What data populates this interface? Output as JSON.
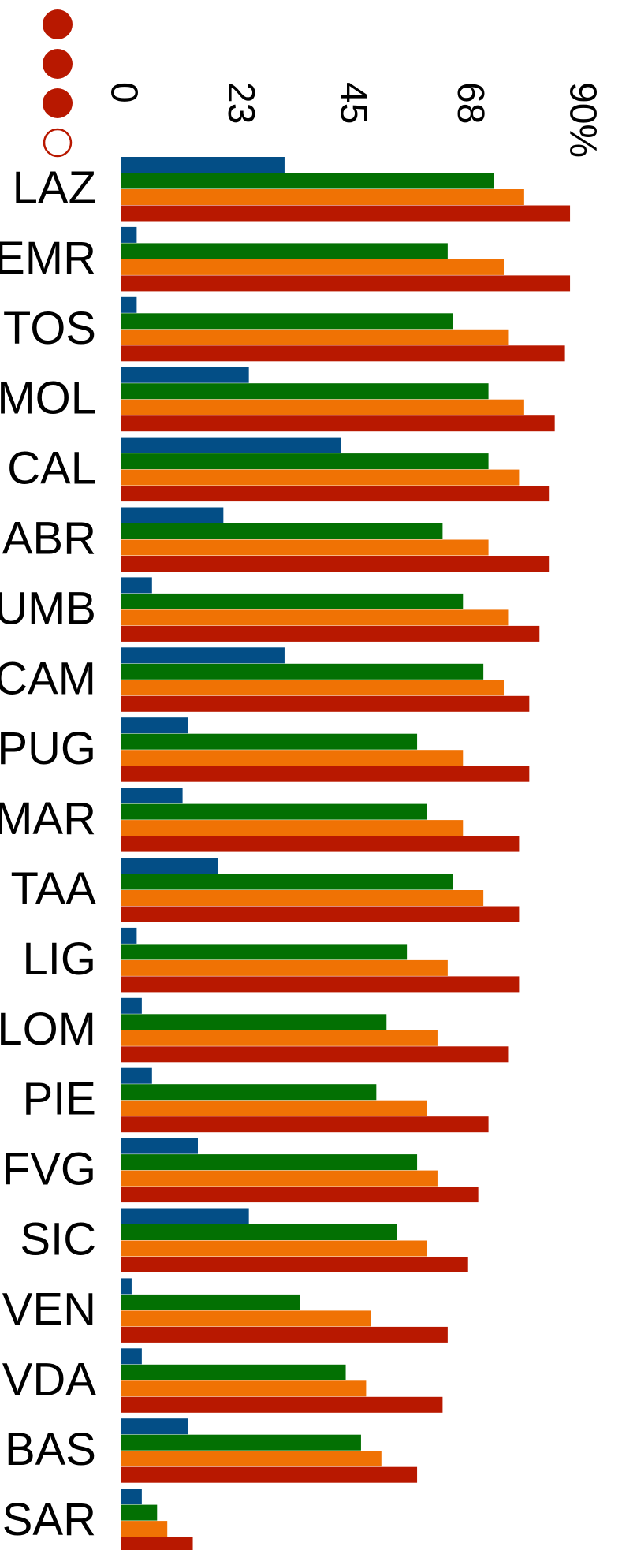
{
  "chart_data": {
    "type": "bar",
    "orientation": "horizontal",
    "categories": [
      "LAZ",
      "EMR",
      "TOS",
      "MOL",
      "CAL",
      "ABR",
      "UMB",
      "CAM",
      "PUG",
      "MAR",
      "TAA",
      "LIG",
      "LOM",
      "PIE",
      "FVG",
      "SIC",
      "VEN",
      "VDA",
      "BAS",
      "SAR"
    ],
    "xlim": [
      0,
      90
    ],
    "ticks": [
      {
        "value": 0,
        "label": "0"
      },
      {
        "value": 23,
        "label": "23"
      },
      {
        "value": 45,
        "label": "45"
      },
      {
        "value": 68,
        "label": "68"
      },
      {
        "value": 90,
        "label": "90%"
      }
    ],
    "grid": false,
    "legend": {
      "placement": "top-left",
      "markers": [
        {
          "style": "filled",
          "color": "#b81800"
        },
        {
          "style": "filled",
          "color": "#b81800"
        },
        {
          "style": "filled",
          "color": "#b81800"
        },
        {
          "style": "outline",
          "color": "#b81800"
        }
      ]
    },
    "series": [
      {
        "color": "#034e86",
        "values": [
          32,
          3,
          3,
          25,
          43,
          20,
          6,
          32,
          13,
          12,
          19,
          3,
          4,
          6,
          15,
          25,
          2,
          4,
          13,
          4
        ]
      },
      {
        "color": "#037003",
        "values": [
          73,
          64,
          65,
          72,
          72,
          63,
          67,
          71,
          58,
          60,
          65,
          56,
          52,
          50,
          58,
          54,
          35,
          44,
          47,
          7
        ]
      },
      {
        "color": "#f07204",
        "values": [
          79,
          75,
          76,
          79,
          78,
          72,
          76,
          75,
          67,
          67,
          71,
          64,
          62,
          60,
          62,
          60,
          49,
          48,
          51,
          9
        ]
      },
      {
        "color": "#b81800",
        "values": [
          88,
          88,
          87,
          85,
          84,
          84,
          82,
          80,
          80,
          78,
          78,
          78,
          76,
          72,
          70,
          68,
          64,
          63,
          58,
          14
        ]
      }
    ]
  }
}
